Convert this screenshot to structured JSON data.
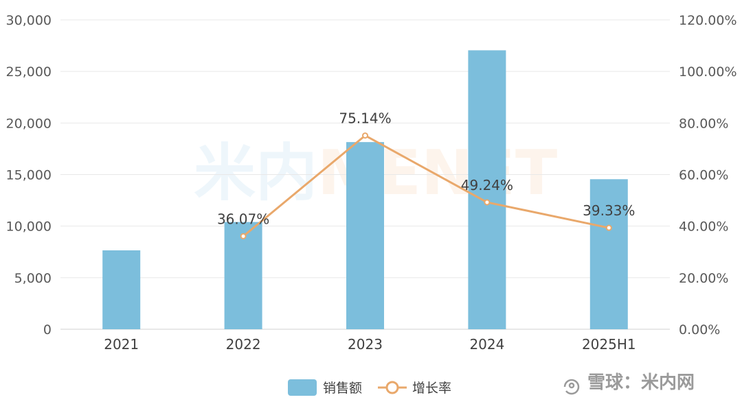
{
  "logo": {
    "chinese": "米内",
    "latin": "MENET"
  },
  "watermark": {
    "text": "雪球：米内网"
  },
  "chart_data": {
    "type": "bar",
    "categories": [
      "2021",
      "2022",
      "2023",
      "2024",
      "2025H1"
    ],
    "series": [
      {
        "name": "销售额",
        "type": "bar",
        "axis": "left",
        "values": [
          7650,
          10400,
          18150,
          27050,
          14550
        ],
        "color": "#7cbedc"
      },
      {
        "name": "增长率",
        "type": "line",
        "axis": "right",
        "values": [
          null,
          36.07,
          75.14,
          49.24,
          39.33
        ],
        "labels": [
          "",
          "36.07%",
          "75.14%",
          "49.24%",
          "39.33%"
        ],
        "color": "#e9a86b"
      }
    ],
    "y_left": {
      "min": 0,
      "max": 30000,
      "ticks": [
        "0",
        "5,000",
        "10,000",
        "15,000",
        "20,000",
        "25,000",
        "30,000"
      ]
    },
    "y_right": {
      "min": 0,
      "max": 120,
      "ticks": [
        "0.00%",
        "20.00%",
        "40.00%",
        "60.00%",
        "80.00%",
        "100.00%",
        "120.00%"
      ]
    },
    "grid": true,
    "legend": "bottom-center"
  }
}
